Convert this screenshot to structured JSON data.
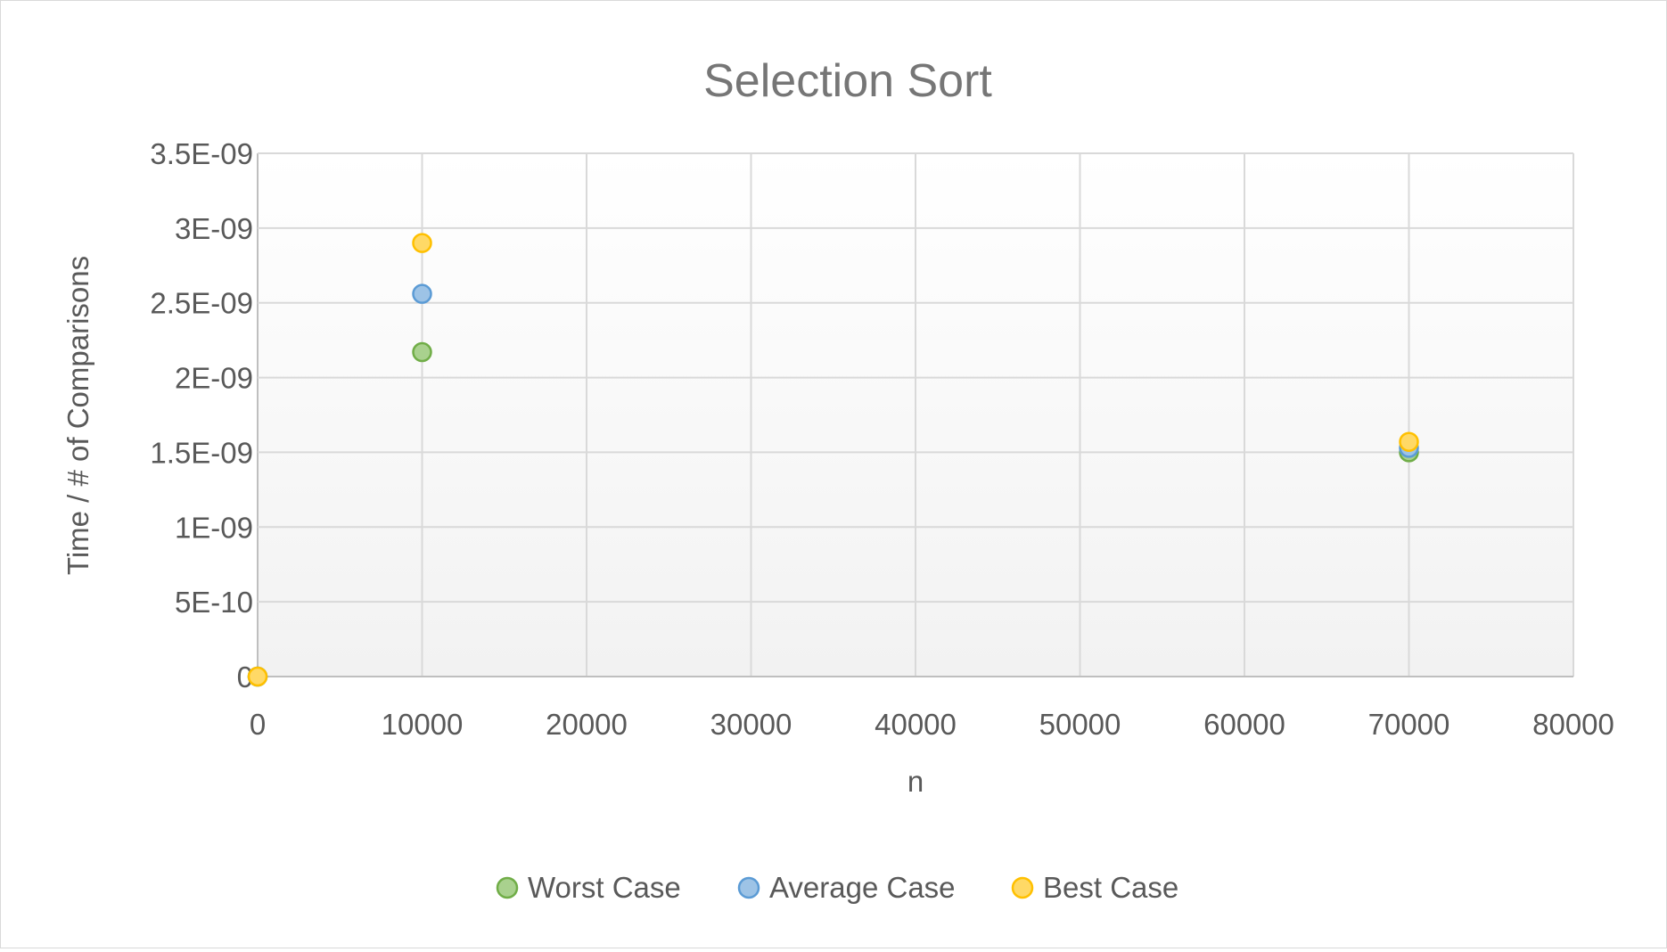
{
  "chart_data": {
    "type": "scatter",
    "title": "Selection Sort",
    "xlabel": "n",
    "ylabel": "Time / # of Comparisons",
    "xlim": [
      0,
      80000
    ],
    "ylim": [
      0,
      3.5e-09
    ],
    "x_ticks": [
      "0",
      "10000",
      "20000",
      "30000",
      "40000",
      "50000",
      "60000",
      "70000",
      "80000"
    ],
    "y_ticks": [
      "0",
      "5E-10",
      "1E-09",
      "1.5E-09",
      "2E-09",
      "2.5E-09",
      "3E-09",
      "3.5E-09"
    ],
    "grid": true,
    "legend_position": "bottom",
    "series": [
      {
        "name": "Worst Case",
        "color": "#70ad47",
        "fill": "#a9d18e",
        "points": [
          {
            "x": 0,
            "y": 0
          },
          {
            "x": 10000,
            "y": 2.17e-09
          },
          {
            "x": 70000,
            "y": 1.5e-09
          }
        ]
      },
      {
        "name": "Average Case",
        "color": "#5b9bd5",
        "fill": "#9dc3e6",
        "points": [
          {
            "x": 0,
            "y": 0
          },
          {
            "x": 10000,
            "y": 2.56e-09
          },
          {
            "x": 70000,
            "y": 1.53e-09
          }
        ]
      },
      {
        "name": "Best Case",
        "color": "#ffc000",
        "fill": "#ffd966",
        "points": [
          {
            "x": 0,
            "y": 0
          },
          {
            "x": 10000,
            "y": 2.9e-09
          },
          {
            "x": 70000,
            "y": 1.57e-09
          }
        ]
      }
    ]
  }
}
